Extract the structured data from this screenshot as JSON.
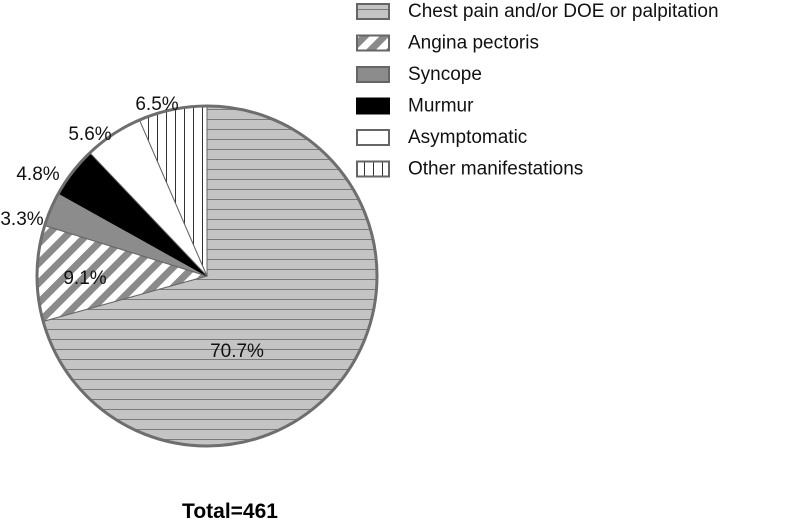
{
  "chart_data": {
    "type": "pie",
    "total_label": "Total=461",
    "slices": [
      {
        "name": "Chest pain and/or DOE or palpitation",
        "value": 70.7,
        "label": "70.7%",
        "pattern": "hlines"
      },
      {
        "name": "Angina pectoris",
        "value": 9.1,
        "label": "9.1%",
        "pattern": "diag"
      },
      {
        "name": "Syncope",
        "value": 3.3,
        "label": "3.3%",
        "pattern": "gray"
      },
      {
        "name": "Murmur",
        "value": 4.8,
        "label": "4.8%",
        "pattern": "black"
      },
      {
        "name": "Asymptomatic",
        "value": 5.6,
        "label": "5.6%",
        "pattern": "white"
      },
      {
        "name": "Other manifestations",
        "value": 6.5,
        "label": "6.5%",
        "pattern": "vlines"
      }
    ],
    "legend_position": "top-right"
  }
}
